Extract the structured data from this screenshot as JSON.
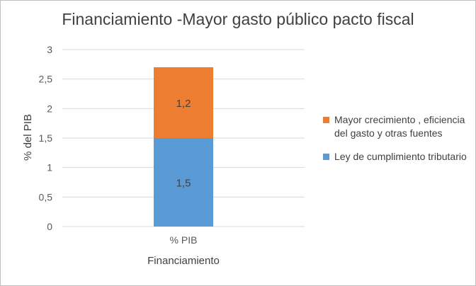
{
  "chart_data": {
    "type": "bar",
    "stacked": true,
    "title": "Financiamiento -Mayor gasto público pacto fiscal",
    "xlabel": "Financiamiento",
    "ylabel": "% del PIB",
    "categories": [
      "% PIB"
    ],
    "ylim": [
      0,
      3
    ],
    "yticks": [
      "0",
      "0,5",
      "1",
      "1,5",
      "2",
      "2,5",
      "3"
    ],
    "grid": true,
    "legend_position": "right",
    "series": [
      {
        "name": "Ley de cumplimiento tributario",
        "values": [
          1.5
        ],
        "labels": [
          "1,5"
        ],
        "color": "#5b9bd5"
      },
      {
        "name": "Mayor crecimiento , eficiencia del gasto y otras fuentes",
        "values": [
          1.2
        ],
        "labels": [
          "1,2"
        ],
        "color": "#ed7d31"
      }
    ]
  }
}
